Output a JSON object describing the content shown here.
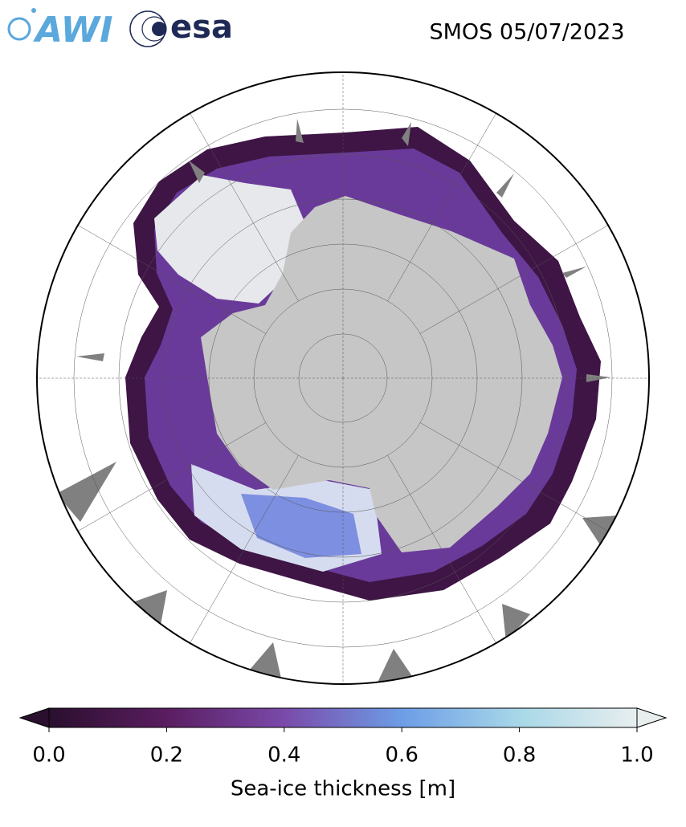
{
  "title": "SMOS 05/07/2023",
  "logos": [
    "AWI",
    "esa"
  ],
  "colorbar": {
    "label": "Sea-ice thickness [m]",
    "lim": [
      0,
      1
    ],
    "ticks": [
      {
        "value": 0,
        "label": "0.0"
      },
      {
        "value": 0.2,
        "label": "0.2"
      },
      {
        "value": 0.4,
        "label": "0.4"
      },
      {
        "value": 0.6,
        "label": "0.6"
      },
      {
        "value": 0.8,
        "label": "0.8"
      },
      {
        "value": 1,
        "label": "1.0"
      }
    ],
    "colors": [
      "#2a0f2e",
      "#5a1d60",
      "#7a4aaa",
      "#6d9de6",
      "#a8d8e8",
      "#e8eeee"
    ],
    "extend": "both"
  }
}
